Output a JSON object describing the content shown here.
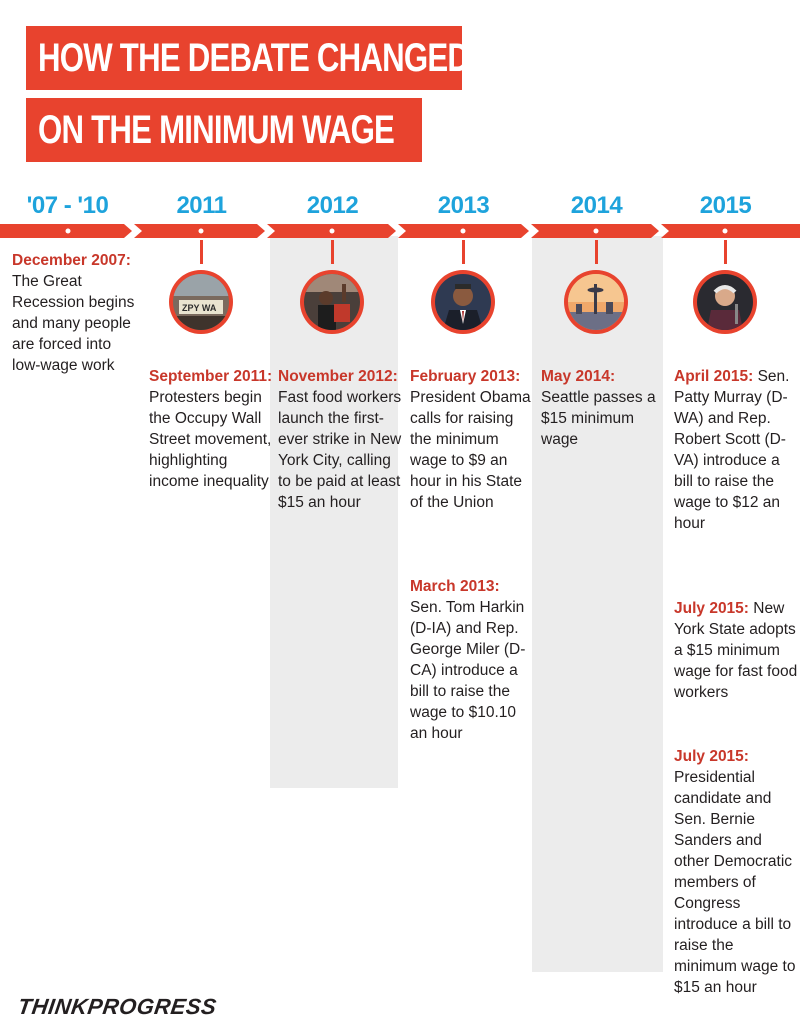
{
  "title": {
    "line1": "HOW THE DEBATE CHANGED",
    "line2": "ON THE MINIMUM WAGE"
  },
  "colors": {
    "accent_red": "#e8432e",
    "date_red": "#c8372a",
    "year_blue": "#1ea3dc",
    "shade_gray": "#ececec"
  },
  "columns": [
    {
      "year": "'07 - '10",
      "entries": [
        {
          "date": "December 2007:",
          "text": "The Great Recession begins and many people are forced into low-wage work"
        }
      ]
    },
    {
      "year": "2011",
      "photo": "occupy-protest-photo",
      "entries": [
        {
          "date": "September 2011:",
          "text": "Protesters begin the Occupy Wall Street movement, highlighting income inequality"
        }
      ]
    },
    {
      "year": "2012",
      "photo": "fast-food-strike-photo",
      "entries": [
        {
          "date": "November 2012:",
          "text": "Fast food workers launch the first-ever strike in New York City, calling to be paid at least $15 an hour"
        }
      ]
    },
    {
      "year": "2013",
      "photo": "obama-photo",
      "entries": [
        {
          "date": "February 2013:",
          "text": "President Obama calls for raising the minimum wage to $9 an hour in his State of the Union"
        },
        {
          "date": "March 2013:",
          "text": "Sen. Tom Harkin (D-IA) and Rep. George Miler (D-CA) introduce a bill to raise the wage to $10.10 an hour"
        }
      ]
    },
    {
      "year": "2014",
      "photo": "seattle-skyline-photo",
      "entries": [
        {
          "date": "May 2014:",
          "text": "Seattle passes a $15 minimum wage"
        }
      ]
    },
    {
      "year": "2015",
      "photo": "bernie-sanders-photo",
      "entries": [
        {
          "date": "April 2015:",
          "text": "Sen. Patty Murray (D-WA) and Rep. Robert Scott (D-VA) introduce a bill to raise the wage to $12 an hour"
        },
        {
          "date": "July 2015:",
          "text": "New York State adopts a $15 minimum wage for fast food workers"
        },
        {
          "date": "July 2015:",
          "text": "Presidential candidate and Sen. Bernie Sanders and other Democratic members of Congress introduce a bill to raise the minimum wage to $15 an hour"
        }
      ]
    }
  ],
  "brand": "THINKPROGRESS"
}
